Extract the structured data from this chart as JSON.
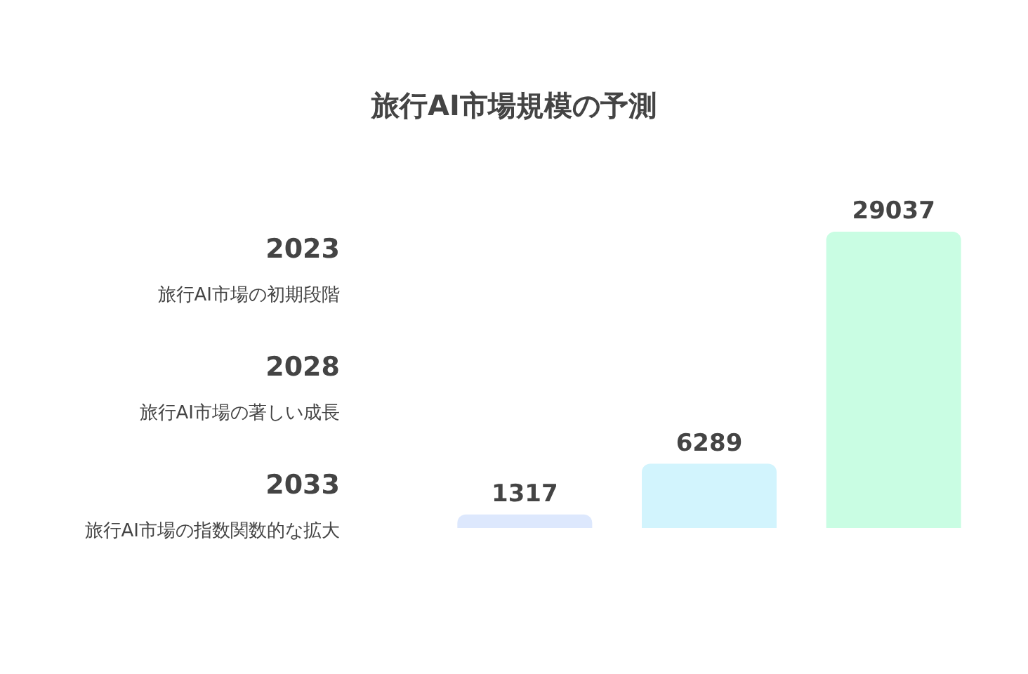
{
  "chart_data": {
    "type": "bar",
    "title": "旅行AI市場規模の予測",
    "categories": [
      null,
      null,
      null
    ],
    "values": [
      1317,
      6289,
      29037
    ],
    "colors": [
      "#dde8fd",
      "#d2f4fd",
      "#c9fde3"
    ],
    "data_labels": true,
    "annotations": [
      "2023",
      "旅行AI市場の初期段階",
      "2028",
      "旅行AI市場の著しい成長",
      "2033",
      "旅行AI市場の指数関数的な拡大"
    ]
  }
}
